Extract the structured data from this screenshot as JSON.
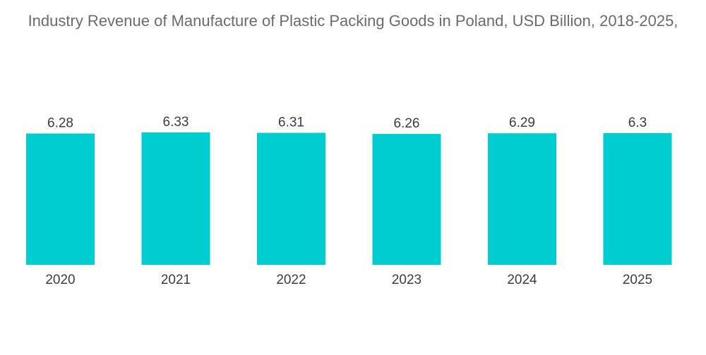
{
  "chart_data": {
    "type": "bar",
    "title": "Industry Revenue of Manufacture of Plastic Packing Goods in Poland, USD Billion, 2018-2025,",
    "categories": [
      "2020",
      "2021",
      "2022",
      "2023",
      "2024",
      "2025"
    ],
    "values": [
      6.28,
      6.33,
      6.31,
      6.26,
      6.29,
      6.3
    ],
    "value_labels": [
      "6.28",
      "6.33",
      "6.31",
      "6.26",
      "6.29",
      "6.3"
    ],
    "xlabel": "",
    "ylabel": "",
    "ylim": [
      0,
      6.33
    ],
    "grid": false,
    "legend": "none",
    "bar_color": "#00cdd0"
  }
}
